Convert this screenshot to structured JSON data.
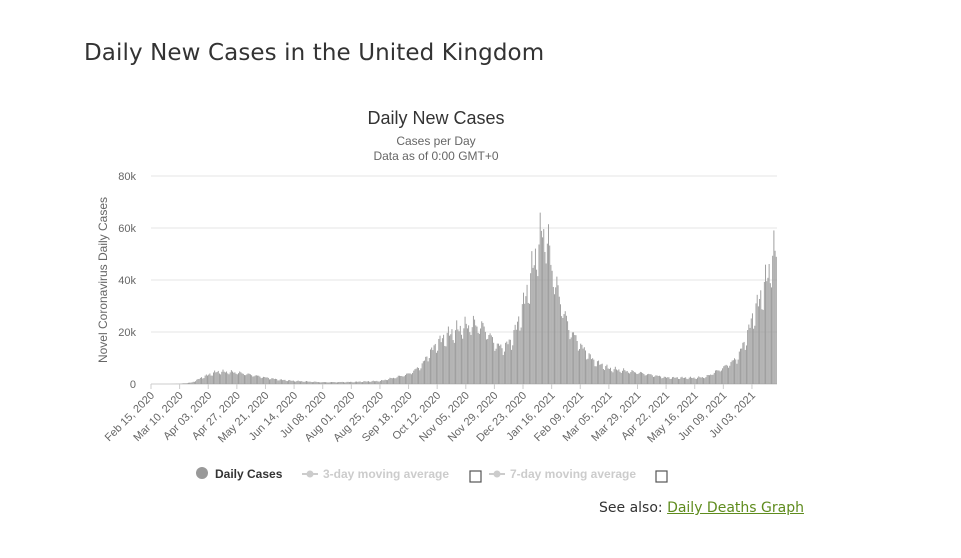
{
  "page": {
    "title": "Daily New Cases in the United Kingdom",
    "see_also_label": "See also:",
    "see_also_link": "Daily Deaths Graph"
  },
  "colors": {
    "bar": "#999999",
    "grid": "#e6e6e6",
    "text": "#333333",
    "muted": "#666666",
    "link": "#5f8c1e",
    "legend_inactive": "#cccccc"
  },
  "chart_data": {
    "type": "bar",
    "title": "Daily New Cases",
    "subtitle_lines": [
      "Cases per Day",
      "Data as of 0:00 GMT+0"
    ],
    "ylabel": "Novel Coronavirus Daily Cases",
    "xlabel": "",
    "ylim": [
      0,
      80000
    ],
    "y_ticks": [
      0,
      20000,
      40000,
      60000,
      80000
    ],
    "y_tick_labels": [
      "0",
      "20k",
      "40k",
      "60k",
      "80k"
    ],
    "x_range": [
      "2020-02-15",
      "2021-07-23"
    ],
    "x_tick_dates": [
      "2020-02-15",
      "2020-03-10",
      "2020-04-03",
      "2020-04-27",
      "2020-05-21",
      "2020-06-14",
      "2020-07-08",
      "2020-08-01",
      "2020-08-25",
      "2020-09-18",
      "2020-10-12",
      "2020-11-05",
      "2020-11-29",
      "2020-12-23",
      "2021-01-16",
      "2021-02-09",
      "2021-03-05",
      "2021-03-29",
      "2021-04-22",
      "2021-05-16",
      "2021-06-09",
      "2021-07-03"
    ],
    "x_tick_labels": [
      "Feb 15, 2020",
      "Mar 10, 2020",
      "Apr 03, 2020",
      "Apr 27, 2020",
      "May 21, 2020",
      "Jun 14, 2020",
      "Jul 08, 2020",
      "Aug 01, 2020",
      "Aug 25, 2020",
      "Sep 18, 2020",
      "Oct 12, 2020",
      "Nov 05, 2020",
      "Nov 29, 2020",
      "Dec 23, 2020",
      "Jan 16, 2021",
      "Feb 09, 2021",
      "Mar 05, 2021",
      "Mar 29, 2021",
      "Apr 22, 2021",
      "May 16, 2021",
      "Jun 09, 2021",
      "Jul 03, 2021"
    ],
    "grid": true,
    "legend_position": "bottom",
    "series": [
      {
        "name": "Daily Cases",
        "active": true,
        "anchor_dates": [
          "2020-02-15",
          "2020-03-01",
          "2020-03-10",
          "2020-03-20",
          "2020-03-28",
          "2020-04-05",
          "2020-04-10",
          "2020-04-20",
          "2020-04-27",
          "2020-05-10",
          "2020-05-21",
          "2020-06-01",
          "2020-06-14",
          "2020-07-08",
          "2020-08-01",
          "2020-08-25",
          "2020-09-10",
          "2020-09-18",
          "2020-09-28",
          "2020-10-05",
          "2020-10-12",
          "2020-10-20",
          "2020-11-01",
          "2020-11-12",
          "2020-11-20",
          "2020-11-29",
          "2020-12-05",
          "2020-12-13",
          "2020-12-20",
          "2020-12-26",
          "2021-01-02",
          "2021-01-08",
          "2021-01-12",
          "2021-01-16",
          "2021-01-22",
          "2021-01-30",
          "2021-02-09",
          "2021-02-20",
          "2021-03-05",
          "2021-03-29",
          "2021-04-22",
          "2021-05-16",
          "2021-05-25",
          "2021-06-09",
          "2021-06-20",
          "2021-06-28",
          "2021-07-03",
          "2021-07-10",
          "2021-07-17",
          "2021-07-20",
          "2021-07-23"
        ],
        "anchor_values": [
          0,
          0,
          100,
          600,
          2500,
          4000,
          4800,
          4700,
          4500,
          3500,
          2500,
          1700,
          1200,
          700,
          800,
          1200,
          3000,
          4000,
          7000,
          12000,
          16000,
          19000,
          22000,
          23500,
          22000,
          16000,
          14000,
          17000,
          26000,
          36000,
          50000,
          60000,
          57000,
          45000,
          34000,
          22000,
          15000,
          9000,
          6000,
          4500,
          2500,
          2400,
          2800,
          6500,
          10000,
          18000,
          26000,
          34000,
          44000,
          50000,
          52000
        ]
      },
      {
        "name": "3-day moving average",
        "active": false
      },
      {
        "name": "7-day moving average",
        "active": false
      }
    ]
  }
}
